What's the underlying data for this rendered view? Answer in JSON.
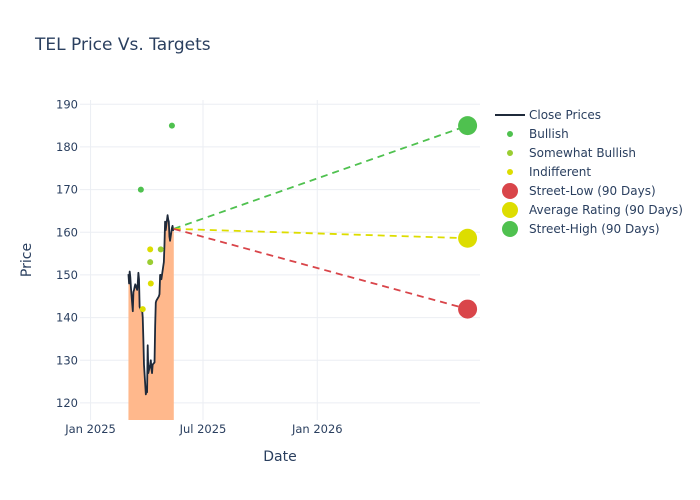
{
  "chart_data": {
    "type": "line",
    "title": "TEL Price Vs. Targets",
    "xlabel": "Date",
    "ylabel": "Price",
    "x_range": [
      "2024-12-15",
      "2026-09-20"
    ],
    "ylim": [
      116,
      191
    ],
    "x_ticks": [
      {
        "date": "2025-01-01",
        "label": "Jan 2025"
      },
      {
        "date": "2025-07-01",
        "label": "Jul 2025"
      },
      {
        "date": "2026-01-01",
        "label": "Jan 2026"
      }
    ],
    "y_ticks": [
      120,
      130,
      140,
      150,
      160,
      170,
      180,
      190
    ],
    "grid": true,
    "legend_position": "right",
    "colors": {
      "close": "#1f2a3a",
      "area": "#ffb88c",
      "bullish": "#4fc14f",
      "somewhat_bullish": "#9acd32",
      "indifferent": "#dddd00",
      "street_low": "#d9454a",
      "average": "#dddd00",
      "street_high": "#4fc14f"
    },
    "series": [
      {
        "name": "Close Prices",
        "kind": "line-area",
        "points": [
          [
            "2025-03-03",
            150.2
          ],
          [
            "2025-03-04",
            148.0
          ],
          [
            "2025-03-05",
            150.8
          ],
          [
            "2025-03-06",
            149.5
          ],
          [
            "2025-03-07",
            147.0
          ],
          [
            "2025-03-10",
            141.5
          ],
          [
            "2025-03-11",
            146.0
          ],
          [
            "2025-03-12",
            146.5
          ],
          [
            "2025-03-13",
            147.2
          ],
          [
            "2025-03-14",
            147.8
          ],
          [
            "2025-03-17",
            146.5
          ],
          [
            "2025-03-18",
            148.0
          ],
          [
            "2025-03-19",
            150.5
          ],
          [
            "2025-03-20",
            149.0
          ],
          [
            "2025-03-21",
            142.5
          ],
          [
            "2025-03-24",
            141.5
          ],
          [
            "2025-03-25",
            142.0
          ],
          [
            "2025-03-26",
            140.0
          ],
          [
            "2025-03-27",
            135.0
          ],
          [
            "2025-03-28",
            129.0
          ],
          [
            "2025-03-31",
            122.0
          ],
          [
            "2025-04-01",
            123.0
          ],
          [
            "2025-04-02",
            122.5
          ],
          [
            "2025-04-03",
            133.5
          ],
          [
            "2025-04-04",
            127.0
          ],
          [
            "2025-04-07",
            129.0
          ],
          [
            "2025-04-08",
            130.0
          ],
          [
            "2025-04-09",
            128.0
          ],
          [
            "2025-04-10",
            127.0
          ],
          [
            "2025-04-11",
            129.0
          ],
          [
            "2025-04-14",
            129.5
          ],
          [
            "2025-04-15",
            138.0
          ],
          [
            "2025-04-16",
            143.5
          ],
          [
            "2025-04-17",
            144.0
          ],
          [
            "2025-04-21",
            145.0
          ],
          [
            "2025-04-22",
            145.5
          ],
          [
            "2025-04-23",
            150.0
          ],
          [
            "2025-04-24",
            150.0
          ],
          [
            "2025-04-25",
            149.0
          ],
          [
            "2025-04-28",
            152.0
          ],
          [
            "2025-04-29",
            153.0
          ],
          [
            "2025-04-30",
            157.0
          ],
          [
            "2025-05-01",
            162.5
          ],
          [
            "2025-05-02",
            160.5
          ],
          [
            "2025-05-05",
            164.0
          ],
          [
            "2025-05-06",
            163.0
          ],
          [
            "2025-05-07",
            162.5
          ],
          [
            "2025-05-08",
            159.0
          ],
          [
            "2025-05-09",
            158.0
          ],
          [
            "2025-05-12",
            161.0
          ],
          [
            "2025-05-13",
            161.5
          ],
          [
            "2025-05-14",
            160.5
          ],
          [
            "2025-05-15",
            160.8
          ]
        ]
      },
      {
        "name": "Bullish",
        "kind": "markers",
        "points": [
          [
            "2025-03-23",
            170
          ],
          [
            "2025-05-12",
            185
          ]
        ]
      },
      {
        "name": "Somewhat Bullish",
        "kind": "markers",
        "points": [
          [
            "2025-04-07",
            153
          ],
          [
            "2025-04-24",
            156
          ]
        ]
      },
      {
        "name": "Indifferent",
        "kind": "markers",
        "points": [
          [
            "2025-03-26",
            142
          ],
          [
            "2025-04-07",
            156
          ],
          [
            "2025-04-08",
            148
          ]
        ]
      },
      {
        "name": "Street-Low (90 Days)",
        "kind": "target",
        "from": [
          "2025-05-15",
          160.8
        ],
        "to": [
          "2026-08-31",
          142
        ]
      },
      {
        "name": "Average Rating (90 Days)",
        "kind": "target",
        "from": [
          "2025-05-15",
          160.8
        ],
        "to": [
          "2026-08-31",
          158.6
        ]
      },
      {
        "name": "Street-High (90 Days)",
        "kind": "target",
        "from": [
          "2025-05-15",
          160.8
        ],
        "to": [
          "2026-08-31",
          185
        ]
      }
    ]
  }
}
